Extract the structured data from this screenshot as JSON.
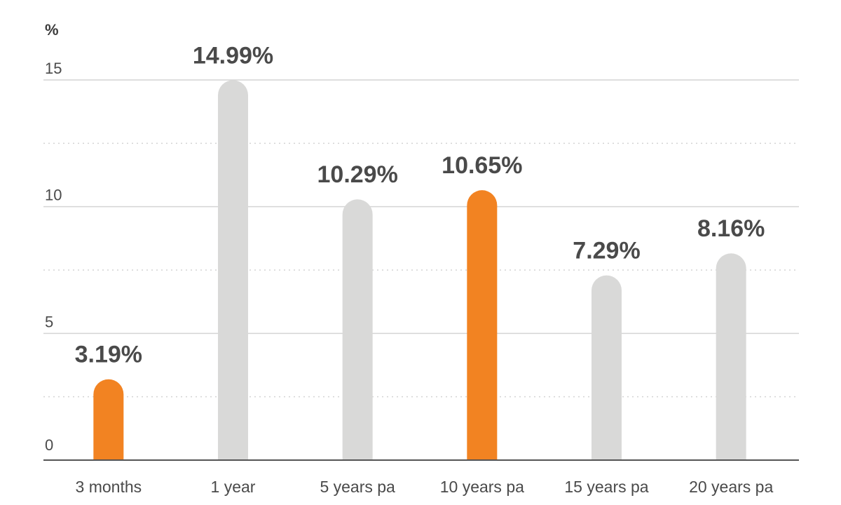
{
  "chart_data": {
    "type": "bar",
    "y_unit": "%",
    "categories": [
      "3 months",
      "1 year",
      "5 years pa",
      "10 years pa",
      "15 years pa",
      "20 years pa"
    ],
    "values": [
      3.19,
      14.99,
      10.29,
      10.65,
      7.29,
      8.16
    ],
    "value_labels": [
      "3.19%",
      "14.99%",
      "10.29%",
      "10.65%",
      "7.29%",
      "8.16%"
    ],
    "highlighted": [
      true,
      false,
      false,
      true,
      false,
      false
    ],
    "ylim": [
      0,
      15
    ],
    "yticks": [
      0,
      5,
      10,
      15
    ],
    "ytick_labels": [
      "0",
      "5",
      "10",
      "15"
    ],
    "minor_gridlines": [
      2.5,
      7.5,
      12.5
    ],
    "grid": true,
    "colors": {
      "highlight": "#f28322",
      "default": "#d9d9d8",
      "gridline": "#d4d4d4",
      "axis": "#555555"
    }
  }
}
